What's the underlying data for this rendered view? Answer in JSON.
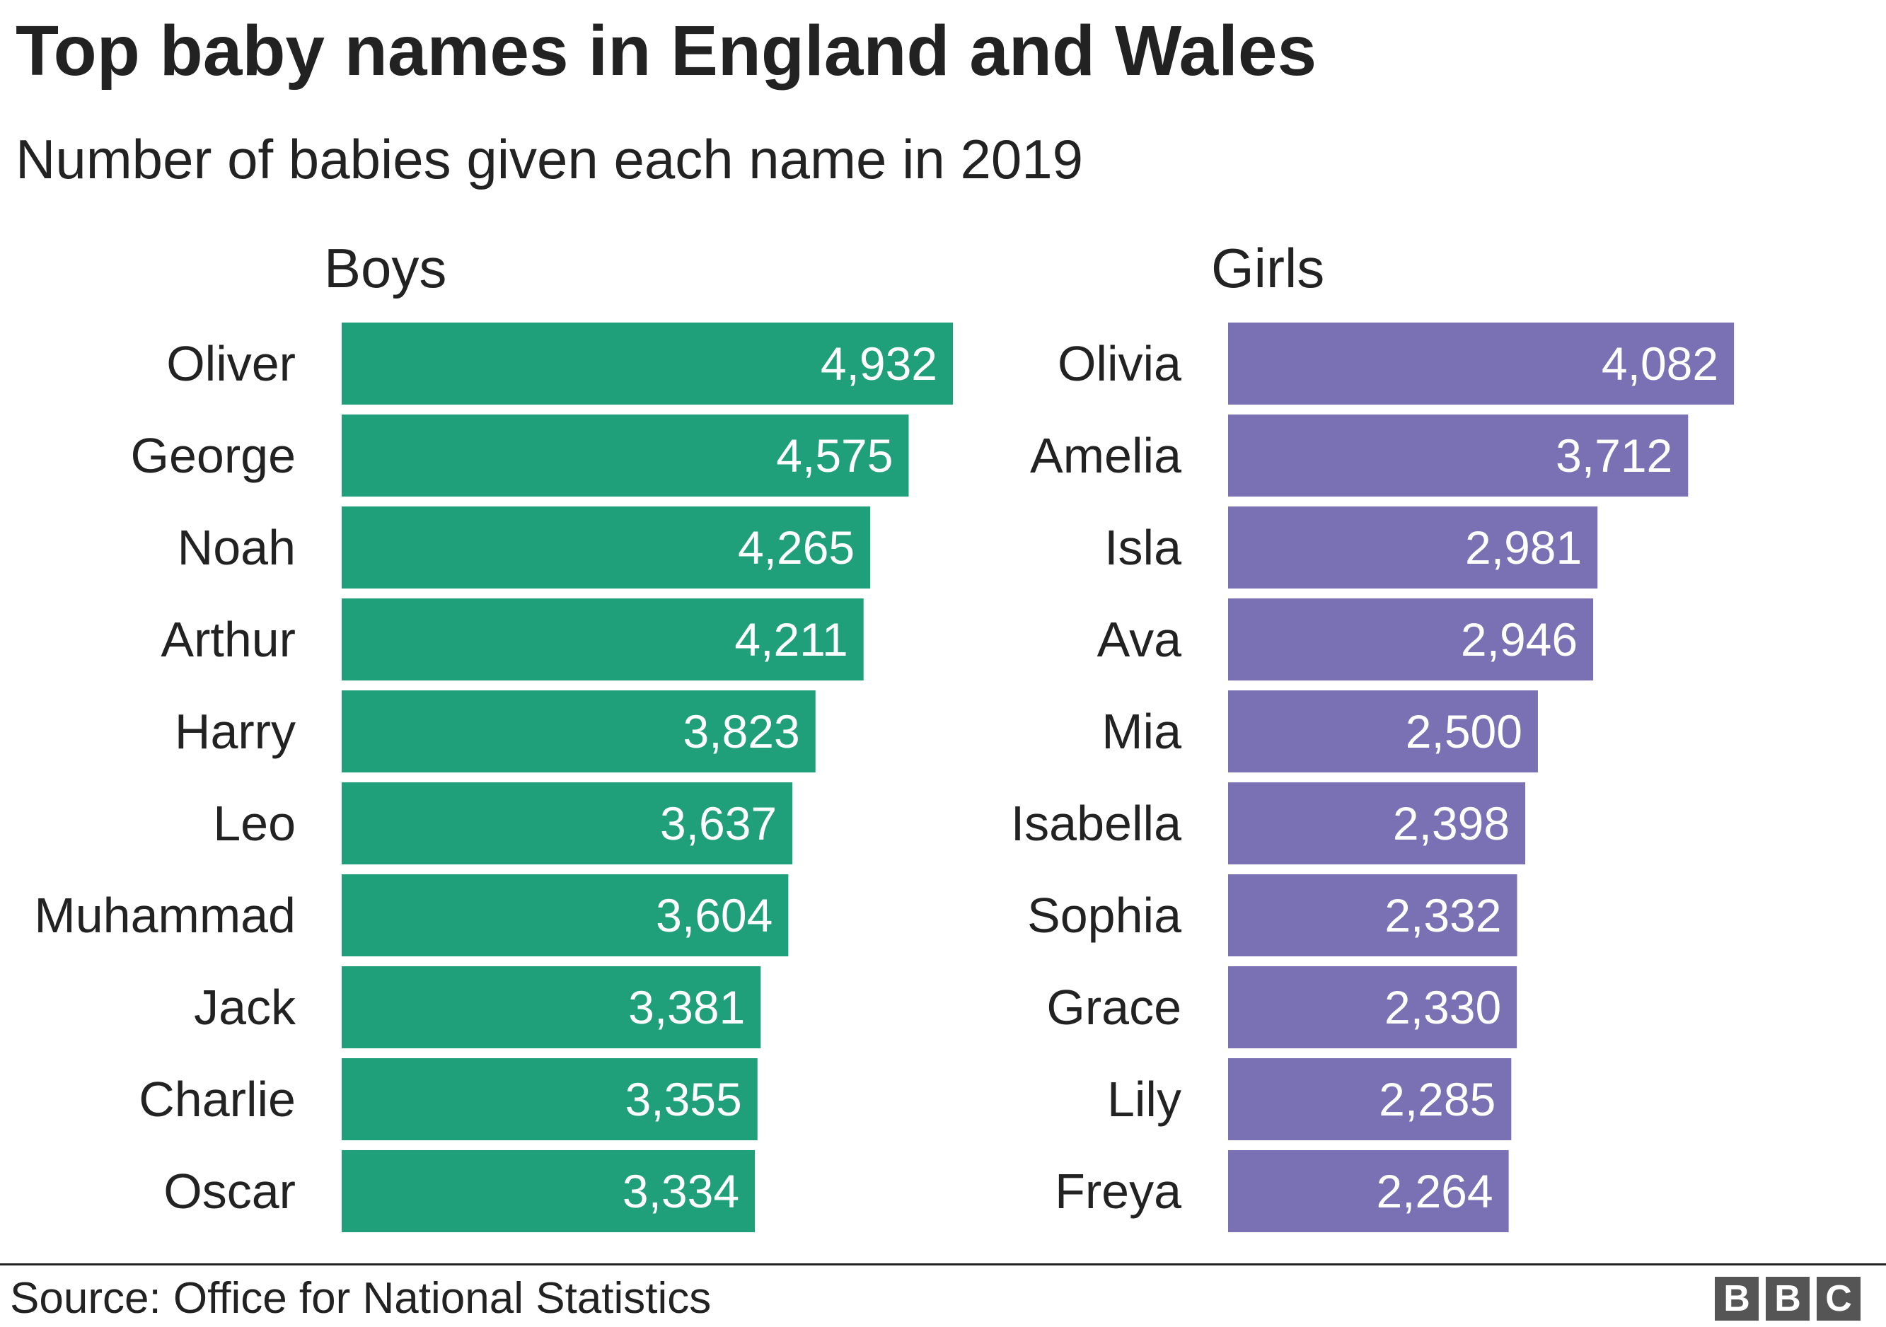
{
  "title": "Top baby names in England and Wales",
  "subtitle": "Number of babies given each name in 2019",
  "source": "Source: Office for National Statistics",
  "logo": [
    "B",
    "B",
    "C"
  ],
  "colors": {
    "boys": "#1fa07a",
    "girls": "#7a71b5",
    "text": "#222222"
  },
  "chart_data": [
    {
      "type": "bar",
      "orientation": "horizontal",
      "title": "Boys",
      "categories": [
        "Oliver",
        "George",
        "Noah",
        "Arthur",
        "Harry",
        "Leo",
        "Muhammad",
        "Jack",
        "Charlie",
        "Oscar"
      ],
      "values": [
        4932,
        4575,
        4265,
        4211,
        3823,
        3637,
        3604,
        3381,
        3355,
        3334
      ],
      "value_labels": [
        "4,932",
        "4,575",
        "4,265",
        "4,211",
        "3,823",
        "3,637",
        "3,604",
        "3,381",
        "3,355",
        "3,334"
      ],
      "color": "#1fa07a",
      "xlabel": "",
      "ylabel": "",
      "grid": false
    },
    {
      "type": "bar",
      "orientation": "horizontal",
      "title": "Girls",
      "categories": [
        "Olivia",
        "Amelia",
        "Isla",
        "Ava",
        "Mia",
        "Isabella",
        "Sophia",
        "Grace",
        "Lily",
        "Freya"
      ],
      "values": [
        4082,
        3712,
        2981,
        2946,
        2500,
        2398,
        2332,
        2330,
        2285,
        2264
      ],
      "value_labels": [
        "4,082",
        "3,712",
        "2,981",
        "2,946",
        "2,500",
        "2,398",
        "2,332",
        "2,330",
        "2,285",
        "2,264"
      ],
      "color": "#7a71b5",
      "xlabel": "",
      "ylabel": "",
      "grid": false
    }
  ]
}
